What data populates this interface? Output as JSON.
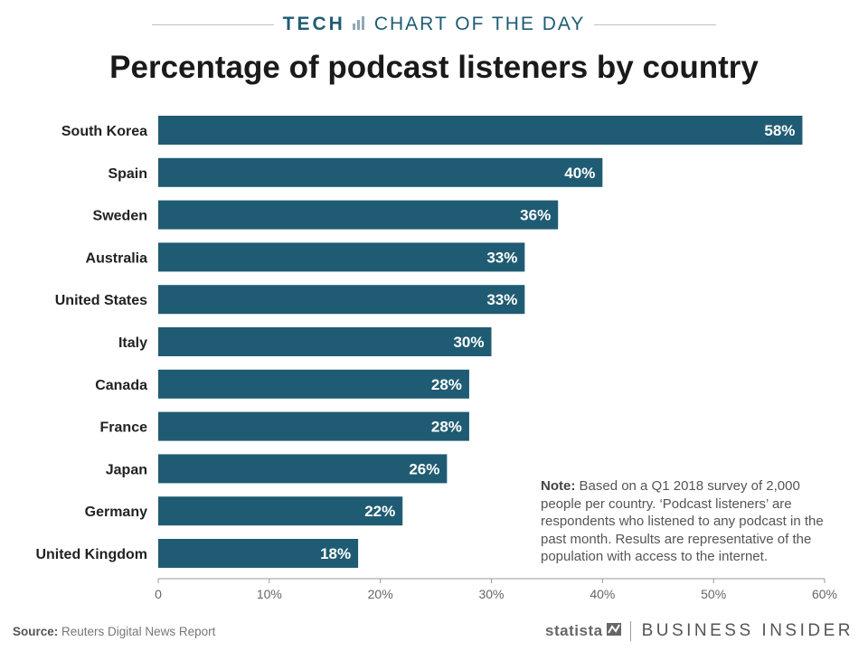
{
  "header": {
    "kicker": "TECH",
    "kicker_sub": "CHART OF THE DAY",
    "accent_color": "#1f5c73"
  },
  "chart_data": {
    "type": "bar",
    "orientation": "horizontal",
    "title": "Percentage of podcast listeners by country",
    "categories": [
      "South Korea",
      "Spain",
      "Sweden",
      "Australia",
      "United States",
      "Italy",
      "Canada",
      "France",
      "Japan",
      "Germany",
      "United Kingdom"
    ],
    "values": [
      58,
      40,
      36,
      33,
      33,
      30,
      28,
      28,
      26,
      22,
      18
    ],
    "value_labels": [
      "58%",
      "40%",
      "36%",
      "33%",
      "33%",
      "30%",
      "28%",
      "28%",
      "26%",
      "22%",
      "18%"
    ],
    "xlim": [
      0,
      60
    ],
    "xticks": [
      0,
      10,
      20,
      30,
      40,
      50,
      60
    ],
    "xtick_labels": [
      "0",
      "10%",
      "20%",
      "30%",
      "40%",
      "50%",
      "60%"
    ],
    "bar_color": "#1f5c73",
    "grid": false
  },
  "note": {
    "label": "Note:",
    "text": "Based on a Q1 2018 survey of 2,000 people per country. ‘Podcast listeners’ are respondents who listened to any podcast in the past month. Results are representative of the population with access to the internet."
  },
  "footer": {
    "source_label": "Source:",
    "source_text": "Reuters Digital News Report",
    "statista": "statista",
    "brand": "BUSINESS INSIDER"
  }
}
